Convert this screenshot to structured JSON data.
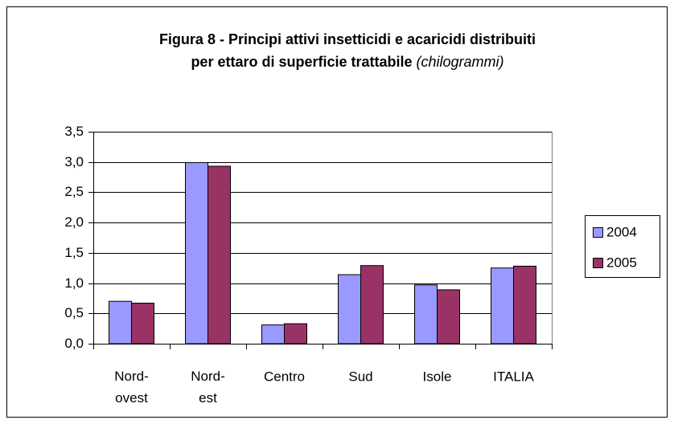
{
  "chart_data": {
    "type": "bar",
    "title": [
      "Figura 8 - Principi attivi insetticidi e acaricidi distribuiti",
      "per ettaro di superficie trattabile"
    ],
    "unit": "(chilogrammi)",
    "categories": [
      "Nord-ovest",
      "Nord-est",
      "Centro",
      "Sud",
      "Isole",
      "ITALIA"
    ],
    "series": [
      {
        "name": "2004",
        "color": "#9999ff",
        "values": [
          0.7,
          2.99,
          0.31,
          1.14,
          0.97,
          1.25
        ]
      },
      {
        "name": "2005",
        "color": "#993366",
        "values": [
          0.67,
          2.93,
          0.33,
          1.29,
          0.89,
          1.28
        ]
      }
    ],
    "ylim": [
      0,
      3.5
    ],
    "yticks": [
      {
        "value": 0,
        "label": "0,0"
      },
      {
        "value": 0.5,
        "label": "0,5"
      },
      {
        "value": 1,
        "label": "1,0"
      },
      {
        "value": 1.5,
        "label": "1,5"
      },
      {
        "value": 2,
        "label": "2,0"
      },
      {
        "value": 2.5,
        "label": "2,5"
      },
      {
        "value": 3,
        "label": "3,0"
      },
      {
        "value": 3.5,
        "label": "3,5"
      }
    ],
    "grid": true,
    "legend": "right"
  }
}
